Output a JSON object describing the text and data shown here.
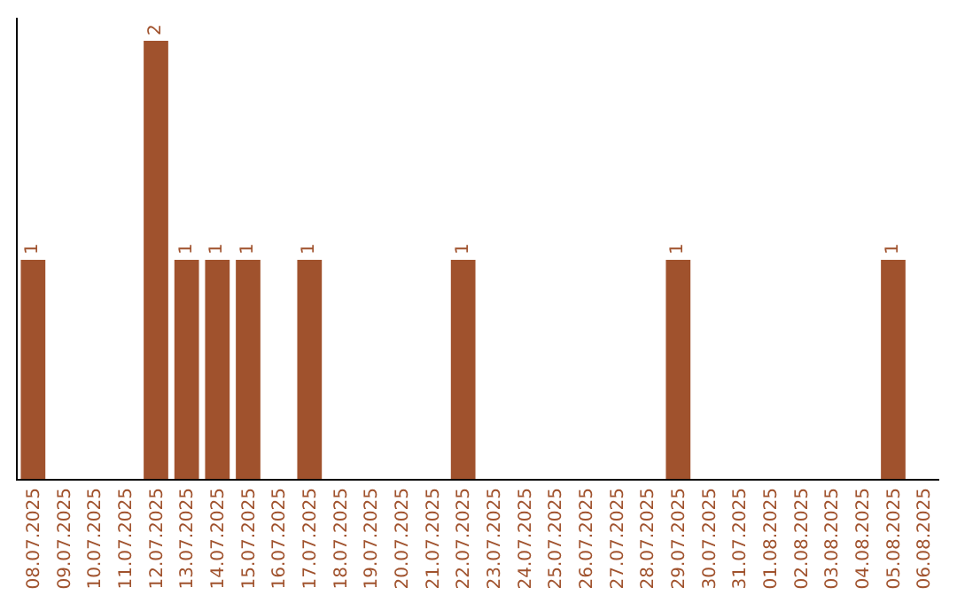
{
  "chart_data": {
    "type": "bar",
    "categories": [
      "08.07.2025",
      "09.07.2025",
      "10.07.2025",
      "11.07.2025",
      "12.07.2025",
      "13.07.2025",
      "14.07.2025",
      "15.07.2025",
      "16.07.2025",
      "17.07.2025",
      "18.07.2025",
      "19.07.2025",
      "20.07.2025",
      "21.07.2025",
      "22.07.2025",
      "23.07.2025",
      "24.07.2025",
      "25.07.2025",
      "26.07.2025",
      "27.07.2025",
      "28.07.2025",
      "29.07.2025",
      "30.07.2025",
      "31.07.2025",
      "01.08.2025",
      "02.08.2025",
      "03.08.2025",
      "04.08.2025",
      "05.08.2025",
      "06.08.2025"
    ],
    "values": [
      1,
      0,
      0,
      0,
      2,
      1,
      1,
      1,
      0,
      1,
      0,
      0,
      0,
      0,
      1,
      0,
      0,
      0,
      0,
      0,
      0,
      1,
      0,
      0,
      0,
      0,
      0,
      0,
      1,
      0
    ],
    "value_labels": [
      "1",
      null,
      null,
      null,
      "2",
      "1",
      "1",
      "1",
      null,
      "1",
      null,
      null,
      null,
      null,
      "1",
      null,
      null,
      null,
      null,
      null,
      null,
      "1",
      null,
      null,
      null,
      null,
      null,
      null,
      "1",
      null
    ],
    "color": "#a0522d",
    "tick_labels": "x",
    "grid": false,
    "legend": false
  }
}
